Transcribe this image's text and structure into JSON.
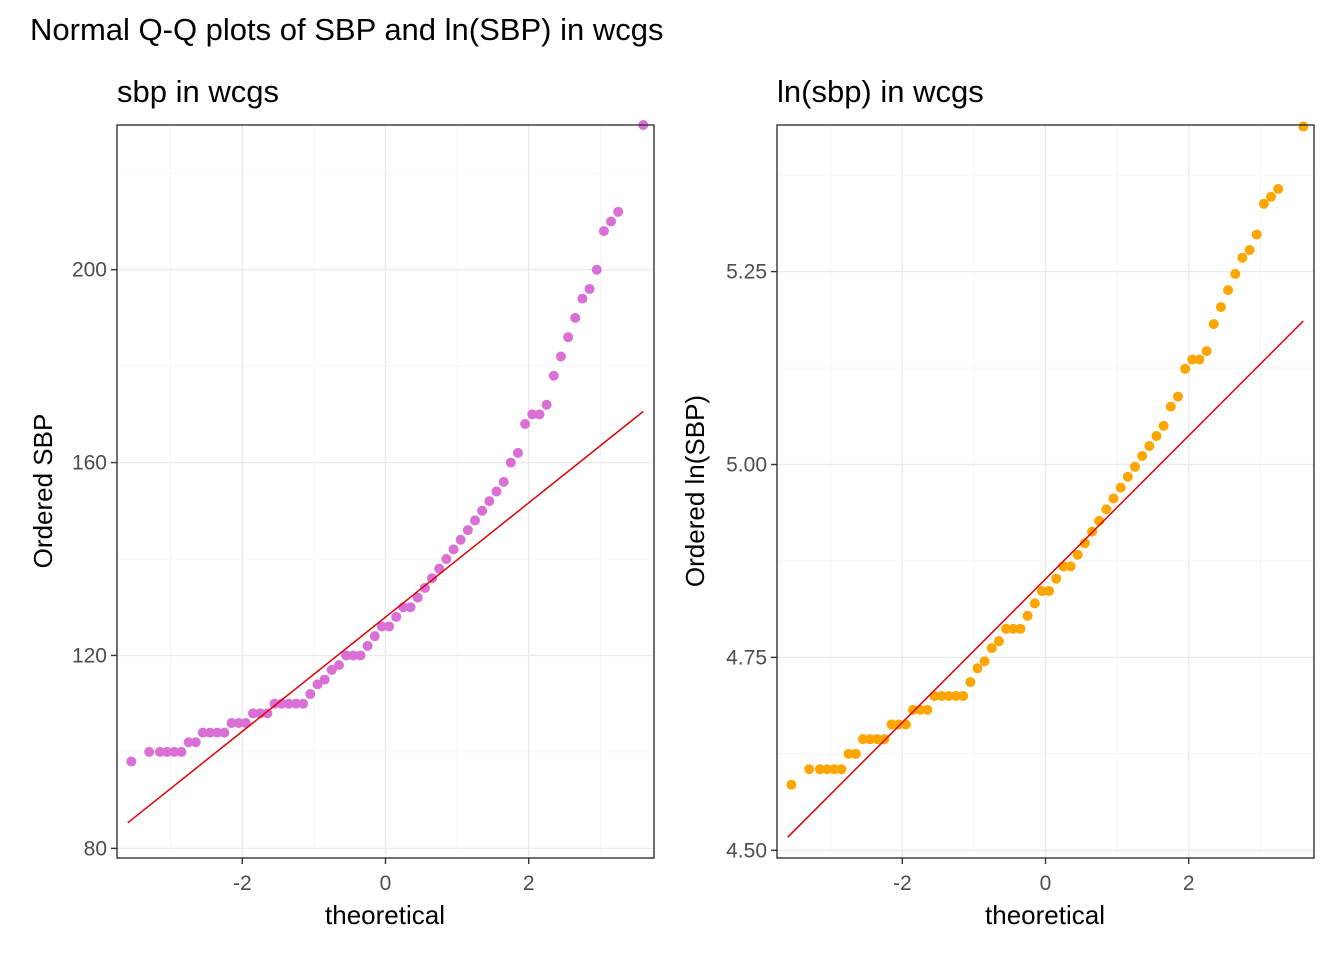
{
  "figure": {
    "title": "Normal Q-Q plots of SBP and ln(SBP) in wcgs"
  },
  "chart_data": [
    {
      "type": "scatter",
      "title": "sbp in wcgs",
      "xlabel": "theoretical",
      "ylabel": "Ordered SBP",
      "xlim": [
        -3.75,
        3.75
      ],
      "ylim": [
        78,
        230
      ],
      "xticks": [
        -2,
        0,
        2
      ],
      "xtick_labels": [
        "-2",
        "0",
        "2"
      ],
      "yticks": [
        80,
        120,
        160,
        200
      ],
      "ytick_labels": [
        "80",
        "120",
        "160",
        "200"
      ],
      "grid": true,
      "point_color": "#da70d6",
      "line_color": "#e00000",
      "reference_line": {
        "x": [
          -3.6,
          3.6
        ],
        "y": [
          85.3,
          170.6
        ]
      },
      "points": [
        [
          -3.55,
          98
        ],
        [
          -3.3,
          100
        ],
        [
          -3.15,
          100
        ],
        [
          -3.05,
          100
        ],
        [
          -2.95,
          100
        ],
        [
          -2.85,
          100
        ],
        [
          -2.75,
          102
        ],
        [
          -2.65,
          102
        ],
        [
          -2.55,
          104
        ],
        [
          -2.45,
          104
        ],
        [
          -2.35,
          104
        ],
        [
          -2.25,
          104
        ],
        [
          -2.15,
          106
        ],
        [
          -2.05,
          106
        ],
        [
          -1.95,
          106
        ],
        [
          -1.85,
          108
        ],
        [
          -1.75,
          108
        ],
        [
          -1.65,
          108
        ],
        [
          -1.55,
          110
        ],
        [
          -1.45,
          110
        ],
        [
          -1.35,
          110
        ],
        [
          -1.25,
          110
        ],
        [
          -1.15,
          110
        ],
        [
          -1.05,
          112
        ],
        [
          -0.95,
          114
        ],
        [
          -0.85,
          115
        ],
        [
          -0.75,
          117
        ],
        [
          -0.65,
          118
        ],
        [
          -0.55,
          120
        ],
        [
          -0.45,
          120
        ],
        [
          -0.35,
          120
        ],
        [
          -0.25,
          122
        ],
        [
          -0.15,
          124
        ],
        [
          -0.05,
          126
        ],
        [
          0.05,
          126
        ],
        [
          0.15,
          128
        ],
        [
          0.25,
          130
        ],
        [
          0.35,
          130
        ],
        [
          0.45,
          132
        ],
        [
          0.55,
          134
        ],
        [
          0.65,
          136
        ],
        [
          0.75,
          138
        ],
        [
          0.85,
          140
        ],
        [
          0.95,
          142
        ],
        [
          1.05,
          144
        ],
        [
          1.15,
          146
        ],
        [
          1.25,
          148
        ],
        [
          1.35,
          150
        ],
        [
          1.45,
          152
        ],
        [
          1.55,
          154
        ],
        [
          1.65,
          156
        ],
        [
          1.75,
          160
        ],
        [
          1.85,
          162
        ],
        [
          1.95,
          168
        ],
        [
          2.05,
          170
        ],
        [
          2.15,
          170
        ],
        [
          2.25,
          172
        ],
        [
          2.35,
          178
        ],
        [
          2.45,
          182
        ],
        [
          2.55,
          186
        ],
        [
          2.65,
          190
        ],
        [
          2.75,
          194
        ],
        [
          2.85,
          196
        ],
        [
          2.95,
          200
        ],
        [
          3.05,
          208
        ],
        [
          3.15,
          210
        ],
        [
          3.25,
          212
        ],
        [
          3.6,
          230
        ]
      ]
    },
    {
      "type": "scatter",
      "title": "ln(sbp) in wcgs",
      "xlabel": "theoretical",
      "ylabel": "Ordered ln(SBP)",
      "xlim": [
        -3.75,
        3.75
      ],
      "ylim": [
        4.49,
        5.44
      ],
      "xticks": [
        -2,
        0,
        2
      ],
      "xtick_labels": [
        "-2",
        "0",
        "2"
      ],
      "yticks": [
        4.5,
        4.75,
        5.0,
        5.25
      ],
      "ytick_labels": [
        "4.50",
        "4.75",
        "5.00",
        "5.25"
      ],
      "grid": true,
      "point_color": "#ffa500",
      "line_color": "#e00000",
      "reference_line": {
        "x": [
          -3.6,
          3.6
        ],
        "y": [
          4.517,
          5.186
        ]
      },
      "points": [
        [
          -3.55,
          4.585
        ],
        [
          -3.3,
          4.605
        ],
        [
          -3.15,
          4.605
        ],
        [
          -3.05,
          4.605
        ],
        [
          -2.95,
          4.605
        ],
        [
          -2.85,
          4.605
        ],
        [
          -2.75,
          4.625
        ],
        [
          -2.65,
          4.625
        ],
        [
          -2.55,
          4.644
        ],
        [
          -2.45,
          4.644
        ],
        [
          -2.35,
          4.644
        ],
        [
          -2.25,
          4.644
        ],
        [
          -2.15,
          4.663
        ],
        [
          -2.05,
          4.663
        ],
        [
          -1.95,
          4.663
        ],
        [
          -1.85,
          4.682
        ],
        [
          -1.75,
          4.682
        ],
        [
          -1.65,
          4.682
        ],
        [
          -1.55,
          4.7
        ],
        [
          -1.45,
          4.7
        ],
        [
          -1.35,
          4.7
        ],
        [
          -1.25,
          4.7
        ],
        [
          -1.15,
          4.7
        ],
        [
          -1.05,
          4.718
        ],
        [
          -0.95,
          4.736
        ],
        [
          -0.85,
          4.745
        ],
        [
          -0.75,
          4.762
        ],
        [
          -0.65,
          4.771
        ],
        [
          -0.55,
          4.787
        ],
        [
          -0.45,
          4.787
        ],
        [
          -0.35,
          4.787
        ],
        [
          -0.25,
          4.804
        ],
        [
          -0.15,
          4.82
        ],
        [
          -0.05,
          4.836
        ],
        [
          0.05,
          4.836
        ],
        [
          0.15,
          4.852
        ],
        [
          0.25,
          4.868
        ],
        [
          0.35,
          4.868
        ],
        [
          0.45,
          4.883
        ],
        [
          0.55,
          4.898
        ],
        [
          0.65,
          4.913
        ],
        [
          0.75,
          4.927
        ],
        [
          0.85,
          4.942
        ],
        [
          0.95,
          4.956
        ],
        [
          1.05,
          4.97
        ],
        [
          1.15,
          4.984
        ],
        [
          1.25,
          4.997
        ],
        [
          1.35,
          5.011
        ],
        [
          1.45,
          5.024
        ],
        [
          1.55,
          5.037
        ],
        [
          1.65,
          5.05
        ],
        [
          1.75,
          5.075
        ],
        [
          1.85,
          5.088
        ],
        [
          1.95,
          5.124
        ],
        [
          2.05,
          5.136
        ],
        [
          2.15,
          5.136
        ],
        [
          2.25,
          5.147
        ],
        [
          2.35,
          5.182
        ],
        [
          2.45,
          5.204
        ],
        [
          2.55,
          5.226
        ],
        [
          2.65,
          5.247
        ],
        [
          2.75,
          5.268
        ],
        [
          2.85,
          5.278
        ],
        [
          2.95,
          5.298
        ],
        [
          3.05,
          5.338
        ],
        [
          3.15,
          5.347
        ],
        [
          3.25,
          5.357
        ],
        [
          3.6,
          5.438
        ]
      ]
    }
  ]
}
